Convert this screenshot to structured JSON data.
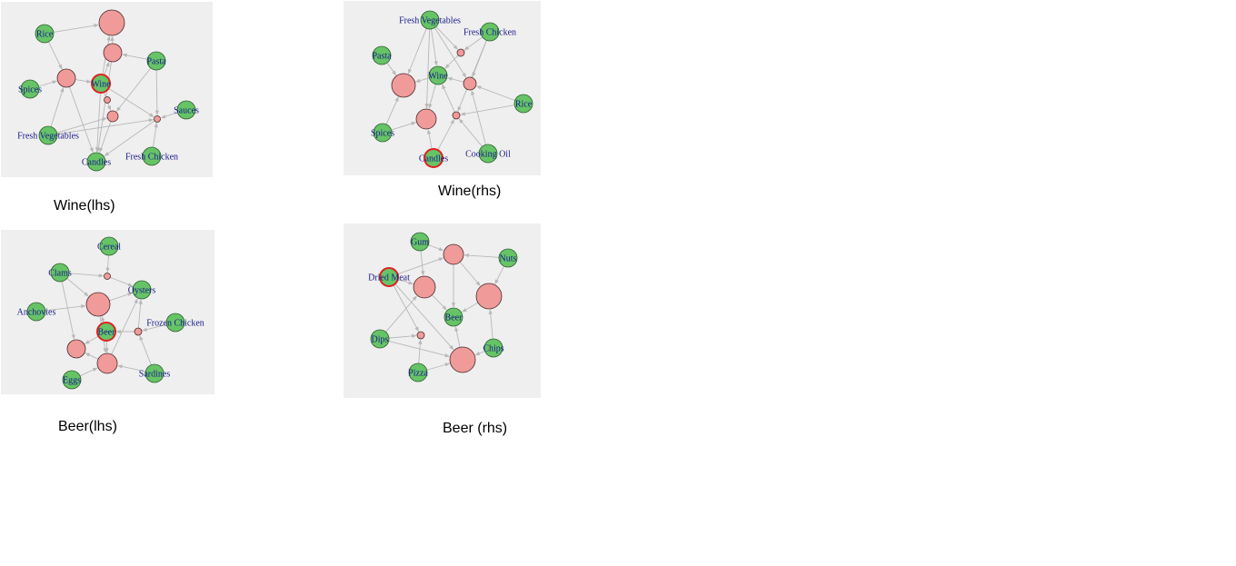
{
  "colors": {
    "panel_bg": "#efefef",
    "item_fill": "#66c466",
    "rule_fill": "#f09a9a",
    "focus_stroke": "#e02020",
    "edge": "#b8b8b8",
    "label": "#1a1a8c"
  },
  "graphs": [
    {
      "caption": "Wine(lhs)",
      "items": [
        {
          "label": "Rice",
          "focus": false
        },
        {
          "label": "Pasta",
          "focus": false
        },
        {
          "label": "Spices",
          "focus": false
        },
        {
          "label": "Wine",
          "focus": true
        },
        {
          "label": "Sauces",
          "focus": false
        },
        {
          "label": "Fresh Vegetables",
          "focus": false
        },
        {
          "label": "Candles",
          "focus": false
        },
        {
          "label": "Fresh Chicken",
          "focus": false
        }
      ],
      "rules": 6
    },
    {
      "caption": "Wine(rhs)",
      "items": [
        {
          "label": "Fresh Vegetables",
          "focus": false
        },
        {
          "label": "Fresh Chicken",
          "focus": false
        },
        {
          "label": "Pasta",
          "focus": false
        },
        {
          "label": "Wine",
          "focus": false
        },
        {
          "label": "Rice",
          "focus": false
        },
        {
          "label": "Spices",
          "focus": false
        },
        {
          "label": "Candles",
          "focus": true
        },
        {
          "label": "Cooking Oil",
          "focus": false
        }
      ],
      "rules": 5
    },
    {
      "caption": "Beer(lhs)",
      "items": [
        {
          "label": "Cereal",
          "focus": false
        },
        {
          "label": "Clams",
          "focus": false
        },
        {
          "label": "Oysters",
          "focus": false
        },
        {
          "label": "Anchovies",
          "focus": false
        },
        {
          "label": "Beer",
          "focus": true
        },
        {
          "label": "Frozen Chicken",
          "focus": false
        },
        {
          "label": "Sardines",
          "focus": false
        },
        {
          "label": "Eggs",
          "focus": false
        }
      ],
      "rules": 5
    },
    {
      "caption": "Beer (rhs)",
      "items": [
        {
          "label": "Gum",
          "focus": false
        },
        {
          "label": "Nuts",
          "focus": false
        },
        {
          "label": "Dried Meat",
          "focus": true
        },
        {
          "label": "Beer",
          "focus": false
        },
        {
          "label": "Dips",
          "focus": false
        },
        {
          "label": "Chips",
          "focus": false
        },
        {
          "label": "Pizza",
          "focus": false
        }
      ],
      "rules": 5
    }
  ]
}
